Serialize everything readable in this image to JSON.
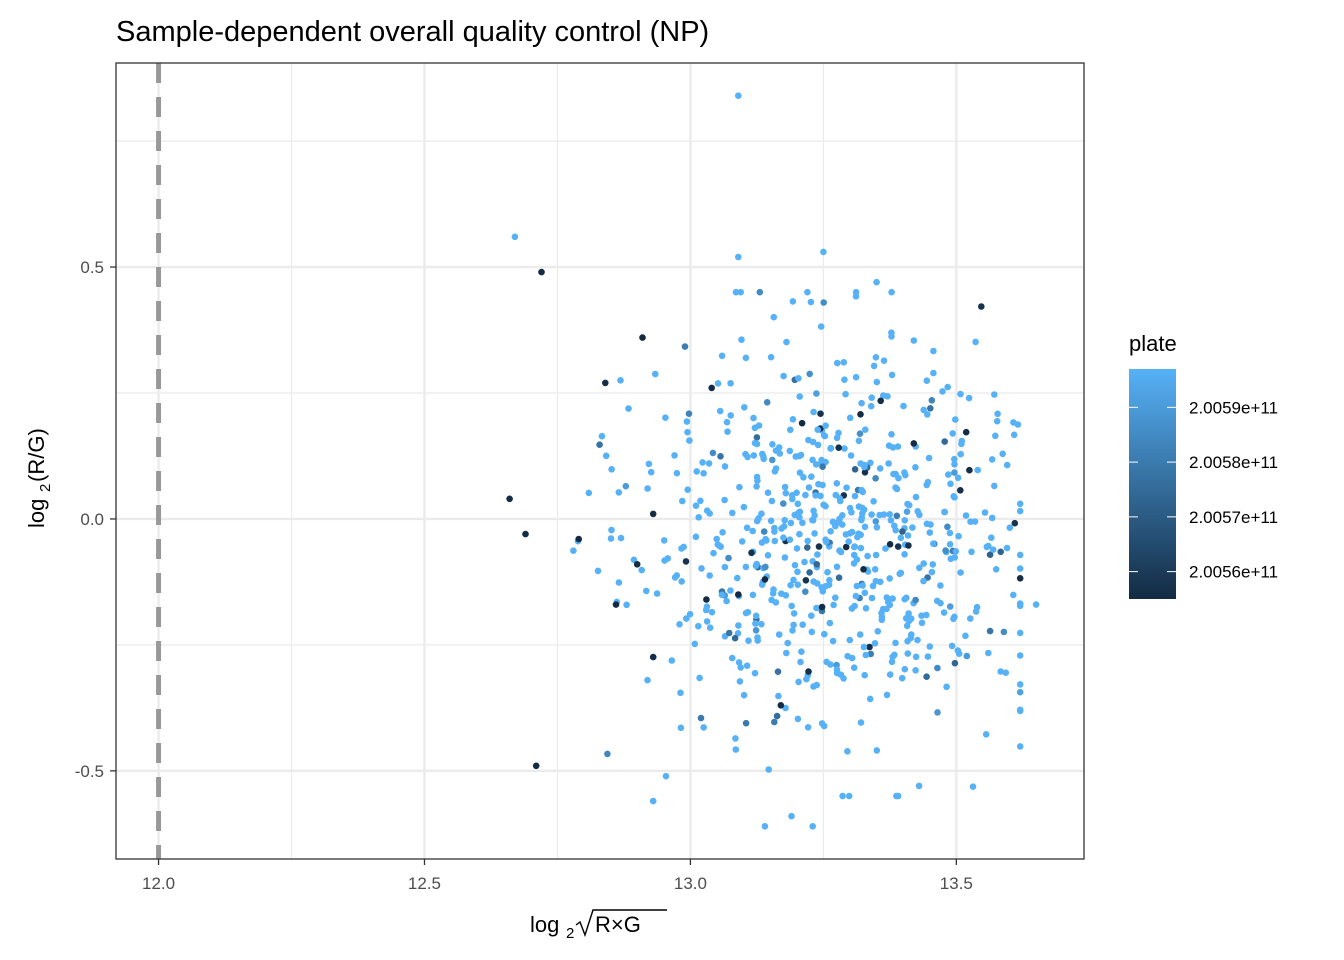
{
  "chart_data": {
    "type": "scatter",
    "title": "Sample-dependent overall quality control (NP)",
    "xlabel": "log2√(R×G)",
    "ylabel": "log2(R/G)",
    "x_axis": {
      "min": 11.92,
      "max": 13.74,
      "major_ticks": [
        12.0,
        12.5,
        13.0,
        13.5
      ],
      "tick_labels": [
        "12.0",
        "12.5",
        "13.0",
        "13.5"
      ],
      "minor_ticks": [
        12.25,
        12.75,
        13.25
      ]
    },
    "y_axis": {
      "min": -0.675,
      "max": 0.905,
      "major_ticks": [
        -0.5,
        0.0,
        0.5
      ],
      "tick_labels": [
        "-0.5",
        "0.0",
        "0.5"
      ],
      "minor_ticks": [
        -0.25,
        0.25,
        0.75
      ]
    },
    "threshold_line": {
      "x": 12.0,
      "style": "dashed",
      "color": "#999999"
    },
    "legend": {
      "title": "plate",
      "min": 200555000000,
      "max": 200597000000,
      "labels": [
        "2.0059e+11",
        "2.0058e+11",
        "2.0057e+11",
        "2.0056e+11"
      ],
      "label_values": [
        200590000000,
        200580000000,
        200570000000,
        200560000000
      ],
      "low_color": "#132B43",
      "high_color": "#56B1F7"
    },
    "highlighted_points": [
      {
        "x": 13.09,
        "y": 0.84,
        "plate": 200597000000
      },
      {
        "x": 12.67,
        "y": 0.56,
        "plate": 200597000000
      },
      {
        "x": 12.72,
        "y": 0.49,
        "plate": 200555000000
      },
      {
        "x": 13.09,
        "y": 0.52,
        "plate": 200597000000
      },
      {
        "x": 13.25,
        "y": 0.53,
        "plate": 200597000000
      },
      {
        "x": 13.35,
        "y": 0.47,
        "plate": 200597000000
      },
      {
        "x": 12.91,
        "y": 0.36,
        "plate": 200555000000
      },
      {
        "x": 12.84,
        "y": 0.27,
        "plate": 200556000000
      },
      {
        "x": 13.04,
        "y": 0.26,
        "plate": 200555000000
      },
      {
        "x": 13.21,
        "y": 0.19,
        "plate": 200555000000
      },
      {
        "x": 13.42,
        "y": 0.15,
        "plate": 200555000000
      },
      {
        "x": 12.66,
        "y": 0.04,
        "plate": 200555000000
      },
      {
        "x": 12.69,
        "y": -0.03,
        "plate": 200555000000
      },
      {
        "x": 12.79,
        "y": -0.04,
        "plate": 200555000000
      },
      {
        "x": 12.93,
        "y": 0.01,
        "plate": 200555000000
      },
      {
        "x": 12.9,
        "y": -0.09,
        "plate": 200555000000
      },
      {
        "x": 12.86,
        "y": -0.17,
        "plate": 200555000000
      },
      {
        "x": 13.03,
        "y": -0.16,
        "plate": 200555000000
      },
      {
        "x": 13.14,
        "y": -0.12,
        "plate": 200555000000
      },
      {
        "x": 13.09,
        "y": -0.15,
        "plate": 200555000000
      },
      {
        "x": 13.17,
        "y": -0.37,
        "plate": 200555000000
      },
      {
        "x": 12.71,
        "y": -0.49,
        "plate": 200555000000
      },
      {
        "x": 12.93,
        "y": -0.56,
        "plate": 200597000000
      },
      {
        "x": 13.14,
        "y": -0.61,
        "plate": 200597000000
      },
      {
        "x": 13.23,
        "y": -0.61,
        "plate": 200597000000
      },
      {
        "x": 13.19,
        "y": -0.59,
        "plate": 200597000000
      },
      {
        "x": 13.65,
        "y": -0.17,
        "plate": 200597000000
      },
      {
        "x": 13.62,
        "y": 0.03,
        "plate": 200597000000
      },
      {
        "x": 13.43,
        "y": -0.53,
        "plate": 200597000000
      }
    ],
    "bulk_distribution": {
      "count": 680,
      "x_center": 13.27,
      "x_spread": 0.18,
      "x_range": [
        12.78,
        13.62
      ],
      "y_center": -0.04,
      "y_spread": 0.2,
      "y_range": [
        -0.55,
        0.45
      ],
      "dark_fraction": 0.035
    }
  }
}
